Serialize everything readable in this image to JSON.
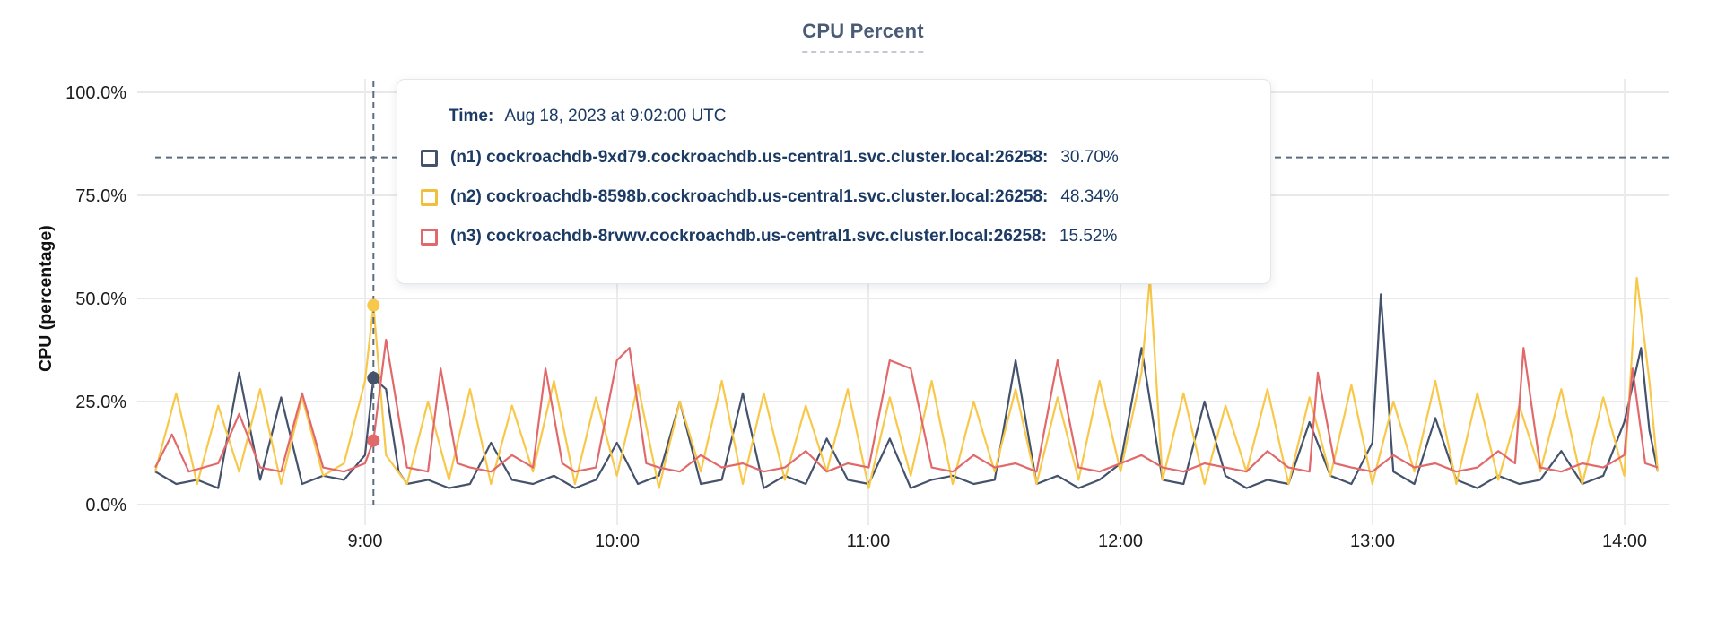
{
  "title": {
    "text": "CPU Percent"
  },
  "tooltip": {
    "time_label": "Time:",
    "time_value": "Aug 18, 2023 at 9:02:00 UTC",
    "rows": [
      {
        "name": "(n1) cockroachdb-9xd79.cockroachdb.us-central1.svc.cluster.local:26258:",
        "value": "30.70%",
        "color": "#44526c"
      },
      {
        "name": "(n2) cockroachdb-8598b.cockroachdb.us-central1.svc.cluster.local:26258:",
        "value": "48.34%",
        "color": "#f0bf3b"
      },
      {
        "name": "(n3) cockroachdb-8rvwv.cockroachdb.us-central1.svc.cluster.local:26258:",
        "value": "15.52%",
        "color": "#e2696b"
      }
    ]
  },
  "chart_data": {
    "type": "line",
    "title": "CPU Percent",
    "xlabel": "",
    "ylabel": "CPU (percentage)",
    "ylim": [
      0,
      100
    ],
    "grid": true,
    "legend_position": "tooltip-overlay",
    "y_ticks": [
      "100.0%",
      "75.0%",
      "50.0%",
      "25.0%",
      "0.0%"
    ],
    "y_tick_values": [
      100,
      75,
      50,
      25,
      0
    ],
    "x_ticks": [
      "9:00",
      "10:00",
      "11:00",
      "12:00",
      "13:00",
      "14:00"
    ],
    "x_tick_minutes": [
      540,
      600,
      660,
      720,
      780,
      840
    ],
    "x_min": 490,
    "x_max": 848,
    "cursor": {
      "minute": 542,
      "time_text": "Aug 18, 2023 at 9:02:00 UTC",
      "hover_percent": 84.2
    },
    "series": [
      {
        "id": "n1",
        "name": "(n1) cockroachdb-9xd79.cockroachdb.us-central1.svc.cluster.local:26258",
        "color": "#44526c",
        "cursor_value": 30.7,
        "points": [
          [
            490,
            8
          ],
          [
            495,
            5
          ],
          [
            500,
            6
          ],
          [
            505,
            4
          ],
          [
            510,
            32
          ],
          [
            515,
            6
          ],
          [
            520,
            26
          ],
          [
            525,
            5
          ],
          [
            530,
            7
          ],
          [
            535,
            6
          ],
          [
            540,
            12
          ],
          [
            542,
            30.7
          ],
          [
            545,
            28
          ],
          [
            548,
            8
          ],
          [
            550,
            5
          ],
          [
            555,
            6
          ],
          [
            560,
            4
          ],
          [
            565,
            5
          ],
          [
            570,
            15
          ],
          [
            575,
            6
          ],
          [
            580,
            5
          ],
          [
            585,
            7
          ],
          [
            590,
            4
          ],
          [
            595,
            6
          ],
          [
            600,
            15
          ],
          [
            605,
            5
          ],
          [
            610,
            7
          ],
          [
            615,
            25
          ],
          [
            620,
            5
          ],
          [
            625,
            6
          ],
          [
            630,
            27
          ],
          [
            635,
            4
          ],
          [
            640,
            7
          ],
          [
            645,
            5
          ],
          [
            650,
            16
          ],
          [
            655,
            6
          ],
          [
            660,
            5
          ],
          [
            665,
            16
          ],
          [
            670,
            4
          ],
          [
            675,
            6
          ],
          [
            680,
            7
          ],
          [
            685,
            5
          ],
          [
            690,
            6
          ],
          [
            695,
            35
          ],
          [
            700,
            5
          ],
          [
            705,
            7
          ],
          [
            710,
            4
          ],
          [
            715,
            6
          ],
          [
            720,
            10
          ],
          [
            725,
            38
          ],
          [
            730,
            6
          ],
          [
            735,
            5
          ],
          [
            740,
            25
          ],
          [
            745,
            7
          ],
          [
            750,
            4
          ],
          [
            755,
            6
          ],
          [
            760,
            5
          ],
          [
            765,
            20
          ],
          [
            770,
            7
          ],
          [
            775,
            5
          ],
          [
            780,
            15
          ],
          [
            782,
            51
          ],
          [
            785,
            8
          ],
          [
            790,
            5
          ],
          [
            795,
            21
          ],
          [
            800,
            6
          ],
          [
            805,
            4
          ],
          [
            810,
            7
          ],
          [
            815,
            5
          ],
          [
            820,
            6
          ],
          [
            825,
            13
          ],
          [
            830,
            5
          ],
          [
            835,
            7
          ],
          [
            840,
            20
          ],
          [
            844,
            38
          ],
          [
            846,
            18
          ],
          [
            848,
            8
          ]
        ]
      },
      {
        "id": "n2",
        "name": "(n2) cockroachdb-8598b.cockroachdb.us-central1.svc.cluster.local:26258",
        "color": "#f8c84a",
        "cursor_value": 48.34,
        "points": [
          [
            490,
            8
          ],
          [
            495,
            27
          ],
          [
            500,
            5
          ],
          [
            505,
            24
          ],
          [
            510,
            8
          ],
          [
            515,
            28
          ],
          [
            520,
            5
          ],
          [
            525,
            26
          ],
          [
            530,
            7
          ],
          [
            535,
            10
          ],
          [
            540,
            30
          ],
          [
            542,
            48.34
          ],
          [
            545,
            12
          ],
          [
            550,
            5
          ],
          [
            555,
            25
          ],
          [
            560,
            6
          ],
          [
            565,
            28
          ],
          [
            570,
            5
          ],
          [
            575,
            24
          ],
          [
            580,
            8
          ],
          [
            585,
            30
          ],
          [
            590,
            5
          ],
          [
            595,
            26
          ],
          [
            600,
            7
          ],
          [
            605,
            29
          ],
          [
            610,
            4
          ],
          [
            615,
            25
          ],
          [
            620,
            8
          ],
          [
            625,
            30
          ],
          [
            630,
            5
          ],
          [
            635,
            27
          ],
          [
            640,
            6
          ],
          [
            645,
            24
          ],
          [
            650,
            8
          ],
          [
            655,
            28
          ],
          [
            660,
            4
          ],
          [
            665,
            26
          ],
          [
            670,
            7
          ],
          [
            675,
            30
          ],
          [
            680,
            5
          ],
          [
            685,
            25
          ],
          [
            690,
            8
          ],
          [
            695,
            28
          ],
          [
            700,
            5
          ],
          [
            705,
            26
          ],
          [
            710,
            6
          ],
          [
            715,
            30
          ],
          [
            720,
            8
          ],
          [
            725,
            32
          ],
          [
            727,
            55
          ],
          [
            730,
            6
          ],
          [
            735,
            27
          ],
          [
            740,
            5
          ],
          [
            745,
            24
          ],
          [
            750,
            8
          ],
          [
            755,
            28
          ],
          [
            760,
            5
          ],
          [
            765,
            26
          ],
          [
            770,
            7
          ],
          [
            775,
            29
          ],
          [
            780,
            5
          ],
          [
            785,
            25
          ],
          [
            790,
            8
          ],
          [
            795,
            30
          ],
          [
            800,
            5
          ],
          [
            805,
            27
          ],
          [
            810,
            6
          ],
          [
            815,
            24
          ],
          [
            820,
            8
          ],
          [
            825,
            28
          ],
          [
            830,
            5
          ],
          [
            835,
            26
          ],
          [
            840,
            7
          ],
          [
            843,
            55
          ],
          [
            846,
            30
          ],
          [
            848,
            8
          ]
        ]
      },
      {
        "id": "n3",
        "name": "(n3) cockroachdb-8rvwv.cockroachdb.us-central1.svc.cluster.local:26258",
        "color": "#e2696b",
        "cursor_value": 15.52,
        "points": [
          [
            490,
            9
          ],
          [
            494,
            17
          ],
          [
            498,
            8
          ],
          [
            505,
            10
          ],
          [
            510,
            22
          ],
          [
            515,
            9
          ],
          [
            520,
            8
          ],
          [
            525,
            27
          ],
          [
            530,
            9
          ],
          [
            535,
            8
          ],
          [
            540,
            10
          ],
          [
            542,
            15.52
          ],
          [
            545,
            40
          ],
          [
            550,
            9
          ],
          [
            555,
            8
          ],
          [
            558,
            33
          ],
          [
            562,
            10
          ],
          [
            565,
            9
          ],
          [
            570,
            8
          ],
          [
            575,
            12
          ],
          [
            580,
            9
          ],
          [
            583,
            33
          ],
          [
            587,
            10
          ],
          [
            590,
            8
          ],
          [
            595,
            9
          ],
          [
            600,
            35
          ],
          [
            603,
            38
          ],
          [
            607,
            10
          ],
          [
            610,
            9
          ],
          [
            615,
            8
          ],
          [
            620,
            12
          ],
          [
            625,
            9
          ],
          [
            630,
            10
          ],
          [
            635,
            8
          ],
          [
            640,
            9
          ],
          [
            645,
            13
          ],
          [
            650,
            8
          ],
          [
            655,
            10
          ],
          [
            660,
            9
          ],
          [
            665,
            35
          ],
          [
            670,
            33
          ],
          [
            675,
            9
          ],
          [
            680,
            8
          ],
          [
            685,
            12
          ],
          [
            690,
            9
          ],
          [
            695,
            10
          ],
          [
            700,
            8
          ],
          [
            705,
            35
          ],
          [
            710,
            9
          ],
          [
            715,
            8
          ],
          [
            720,
            10
          ],
          [
            725,
            12
          ],
          [
            730,
            9
          ],
          [
            735,
            8
          ],
          [
            740,
            10
          ],
          [
            745,
            9
          ],
          [
            750,
            8
          ],
          [
            755,
            13
          ],
          [
            760,
            9
          ],
          [
            765,
            8
          ],
          [
            767,
            32
          ],
          [
            771,
            10
          ],
          [
            775,
            9
          ],
          [
            780,
            8
          ],
          [
            785,
            12
          ],
          [
            790,
            9
          ],
          [
            795,
            10
          ],
          [
            800,
            8
          ],
          [
            805,
            9
          ],
          [
            810,
            13
          ],
          [
            814,
            10
          ],
          [
            816,
            38
          ],
          [
            820,
            9
          ],
          [
            825,
            8
          ],
          [
            830,
            10
          ],
          [
            835,
            9
          ],
          [
            840,
            12
          ],
          [
            842,
            33
          ],
          [
            845,
            10
          ],
          [
            848,
            9
          ]
        ]
      }
    ]
  }
}
